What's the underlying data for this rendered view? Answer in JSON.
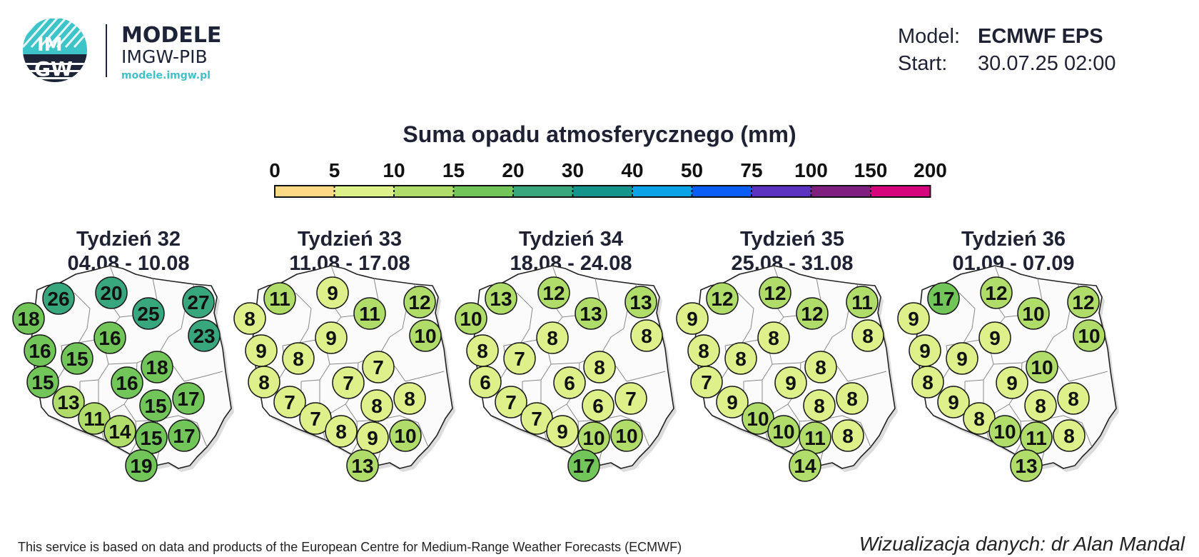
{
  "logo": {
    "badge_text_top": "IM",
    "badge_text_bottom": "GW",
    "line1": "MODELE",
    "line2": "IMGW-PIB",
    "line3": "modele.imgw.pl"
  },
  "meta": {
    "model_label": "Model:",
    "model_value": "ECMWF EPS",
    "start_label": "Start:",
    "start_value": "30.07.25 02:00"
  },
  "chart_data": {
    "type": "map",
    "title": "Suma opadu atmosferycznego (mm)",
    "legend": {
      "ticks": [
        "0",
        "5",
        "10",
        "15",
        "20",
        "30",
        "40",
        "50",
        "75",
        "100",
        "150",
        "200"
      ],
      "colors": [
        "#fdd985",
        "#def08a",
        "#b0dc69",
        "#72c559",
        "#38a77e",
        "#14958c",
        "#0aa3e8",
        "#0a5ef5",
        "#5c33c0",
        "#80207e",
        "#d6057c"
      ]
    },
    "panels": [
      {
        "week": "Tydzień 32",
        "dates": "04.08 - 10.08",
        "values": [
          26,
          20,
          18,
          25,
          27,
          16,
          23,
          16,
          15,
          15,
          18,
          16,
          13,
          15,
          17,
          11,
          14,
          15,
          17,
          19
        ]
      },
      {
        "week": "Tydzień 33",
        "dates": "11.08 - 17.08",
        "values": [
          11,
          9,
          8,
          11,
          12,
          9,
          10,
          9,
          8,
          8,
          7,
          7,
          7,
          8,
          8,
          7,
          8,
          9,
          10,
          13
        ]
      },
      {
        "week": "Tydzień 34",
        "dates": "18.08 - 24.08",
        "values": [
          13,
          12,
          10,
          13,
          13,
          8,
          8,
          8,
          7,
          6,
          8,
          6,
          7,
          6,
          7,
          7,
          9,
          10,
          10,
          17
        ]
      },
      {
        "week": "Tydzień 35",
        "dates": "25.08 - 31.08",
        "values": [
          12,
          12,
          9,
          12,
          11,
          8,
          8,
          8,
          8,
          7,
          8,
          9,
          9,
          8,
          8,
          10,
          10,
          11,
          8,
          14
        ]
      },
      {
        "week": "Tydzień 36",
        "dates": "01.09 - 07.09",
        "values": [
          17,
          12,
          9,
          10,
          12,
          9,
          10,
          9,
          9,
          8,
          10,
          9,
          9,
          8,
          8,
          8,
          10,
          11,
          8,
          13
        ]
      }
    ]
  },
  "footer": {
    "left": "This service is based on data and products of the European Centre for Medium-Range Weather Forecasts (ECMWF)",
    "right": "Wizualizacja danych: dr Alan Mandal"
  }
}
